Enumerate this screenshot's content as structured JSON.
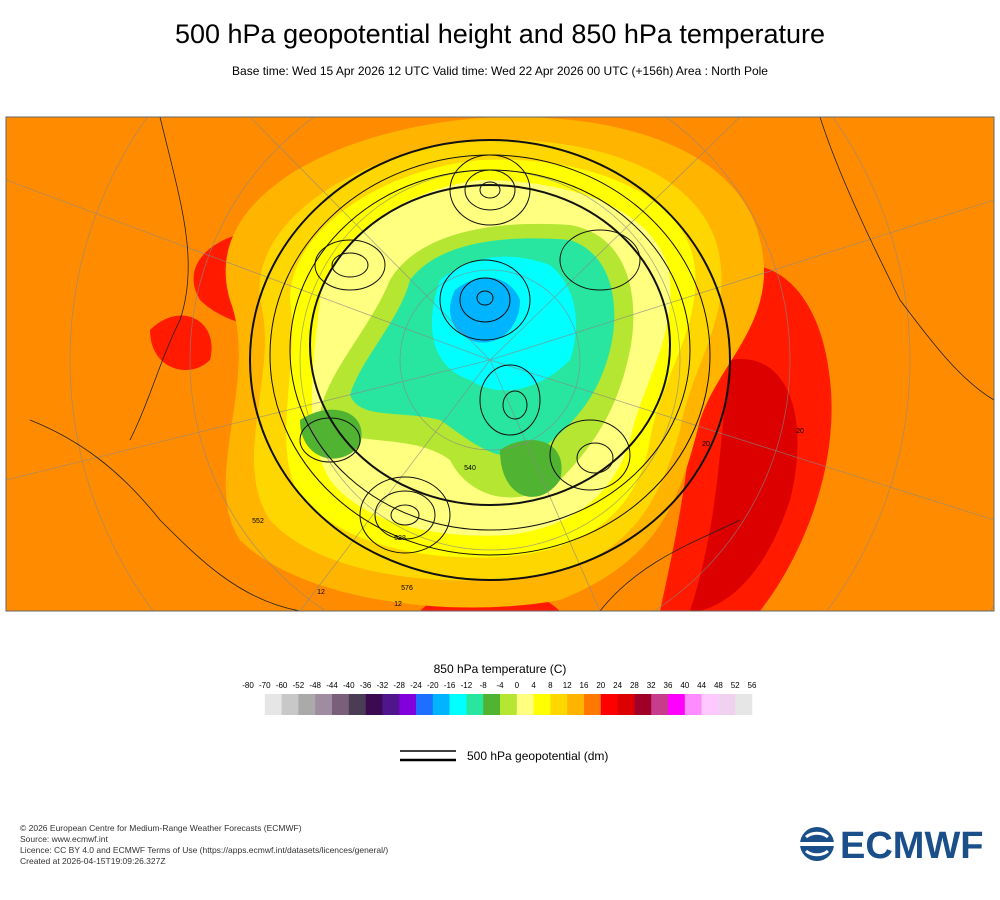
{
  "header": {
    "title": "500 hPa geopotential height and 850 hPa temperature",
    "subtitle": "Base time: Wed 15 Apr 2026 12 UTC Valid time: Wed 22 Apr 2026 00 UTC (+156h) Area : North Pole"
  },
  "map": {
    "contour_labels": [
      "576",
      "12",
      "12",
      "540",
      "20",
      "20",
      "552",
      "528"
    ]
  },
  "colorbar": {
    "title": "850 hPa temperature (C)",
    "ticks": [
      -80,
      -70,
      -60,
      -52,
      -48,
      -44,
      -40,
      -36,
      -32,
      -28,
      -24,
      -20,
      -16,
      -12,
      -8,
      -4,
      0,
      4,
      8,
      12,
      16,
      20,
      24,
      28,
      32,
      36,
      40,
      44,
      48,
      52,
      56
    ],
    "colors": [
      "#e6e6e6",
      "#c8c8c8",
      "#aaaaaa",
      "#a08ca0",
      "#7a5f7a",
      "#4b3c55",
      "#3c0a50",
      "#50148c",
      "#8200dc",
      "#1e6eff",
      "#00b4ff",
      "#00ffff",
      "#28e6a0",
      "#50b432",
      "#b4e632",
      "#ffff80",
      "#ffff00",
      "#ffd700",
      "#ffb400",
      "#ff7800",
      "#ff0000",
      "#dc0000",
      "#a00028",
      "#c83c8c",
      "#ff00ff",
      "#ff8cff",
      "#ffc8ff",
      "#f0d2f0",
      "#e6e6e6"
    ]
  },
  "contour_legend": {
    "label": "500 hPa geopotential (dm)"
  },
  "footer": {
    "lines": [
      "© 2026 European Centre for Medium-Range Weather Forecasts (ECMWF)",
      "Source: www.ecmwf.int",
      "Licence: CC BY 4.0 and ECMWF Terms of Use (https://apps.ecmwf.int/datasets/licences/general/)",
      "Created at 2026-04-15T19:09:26.327Z"
    ]
  },
  "logo": {
    "text": "ECMWF"
  }
}
